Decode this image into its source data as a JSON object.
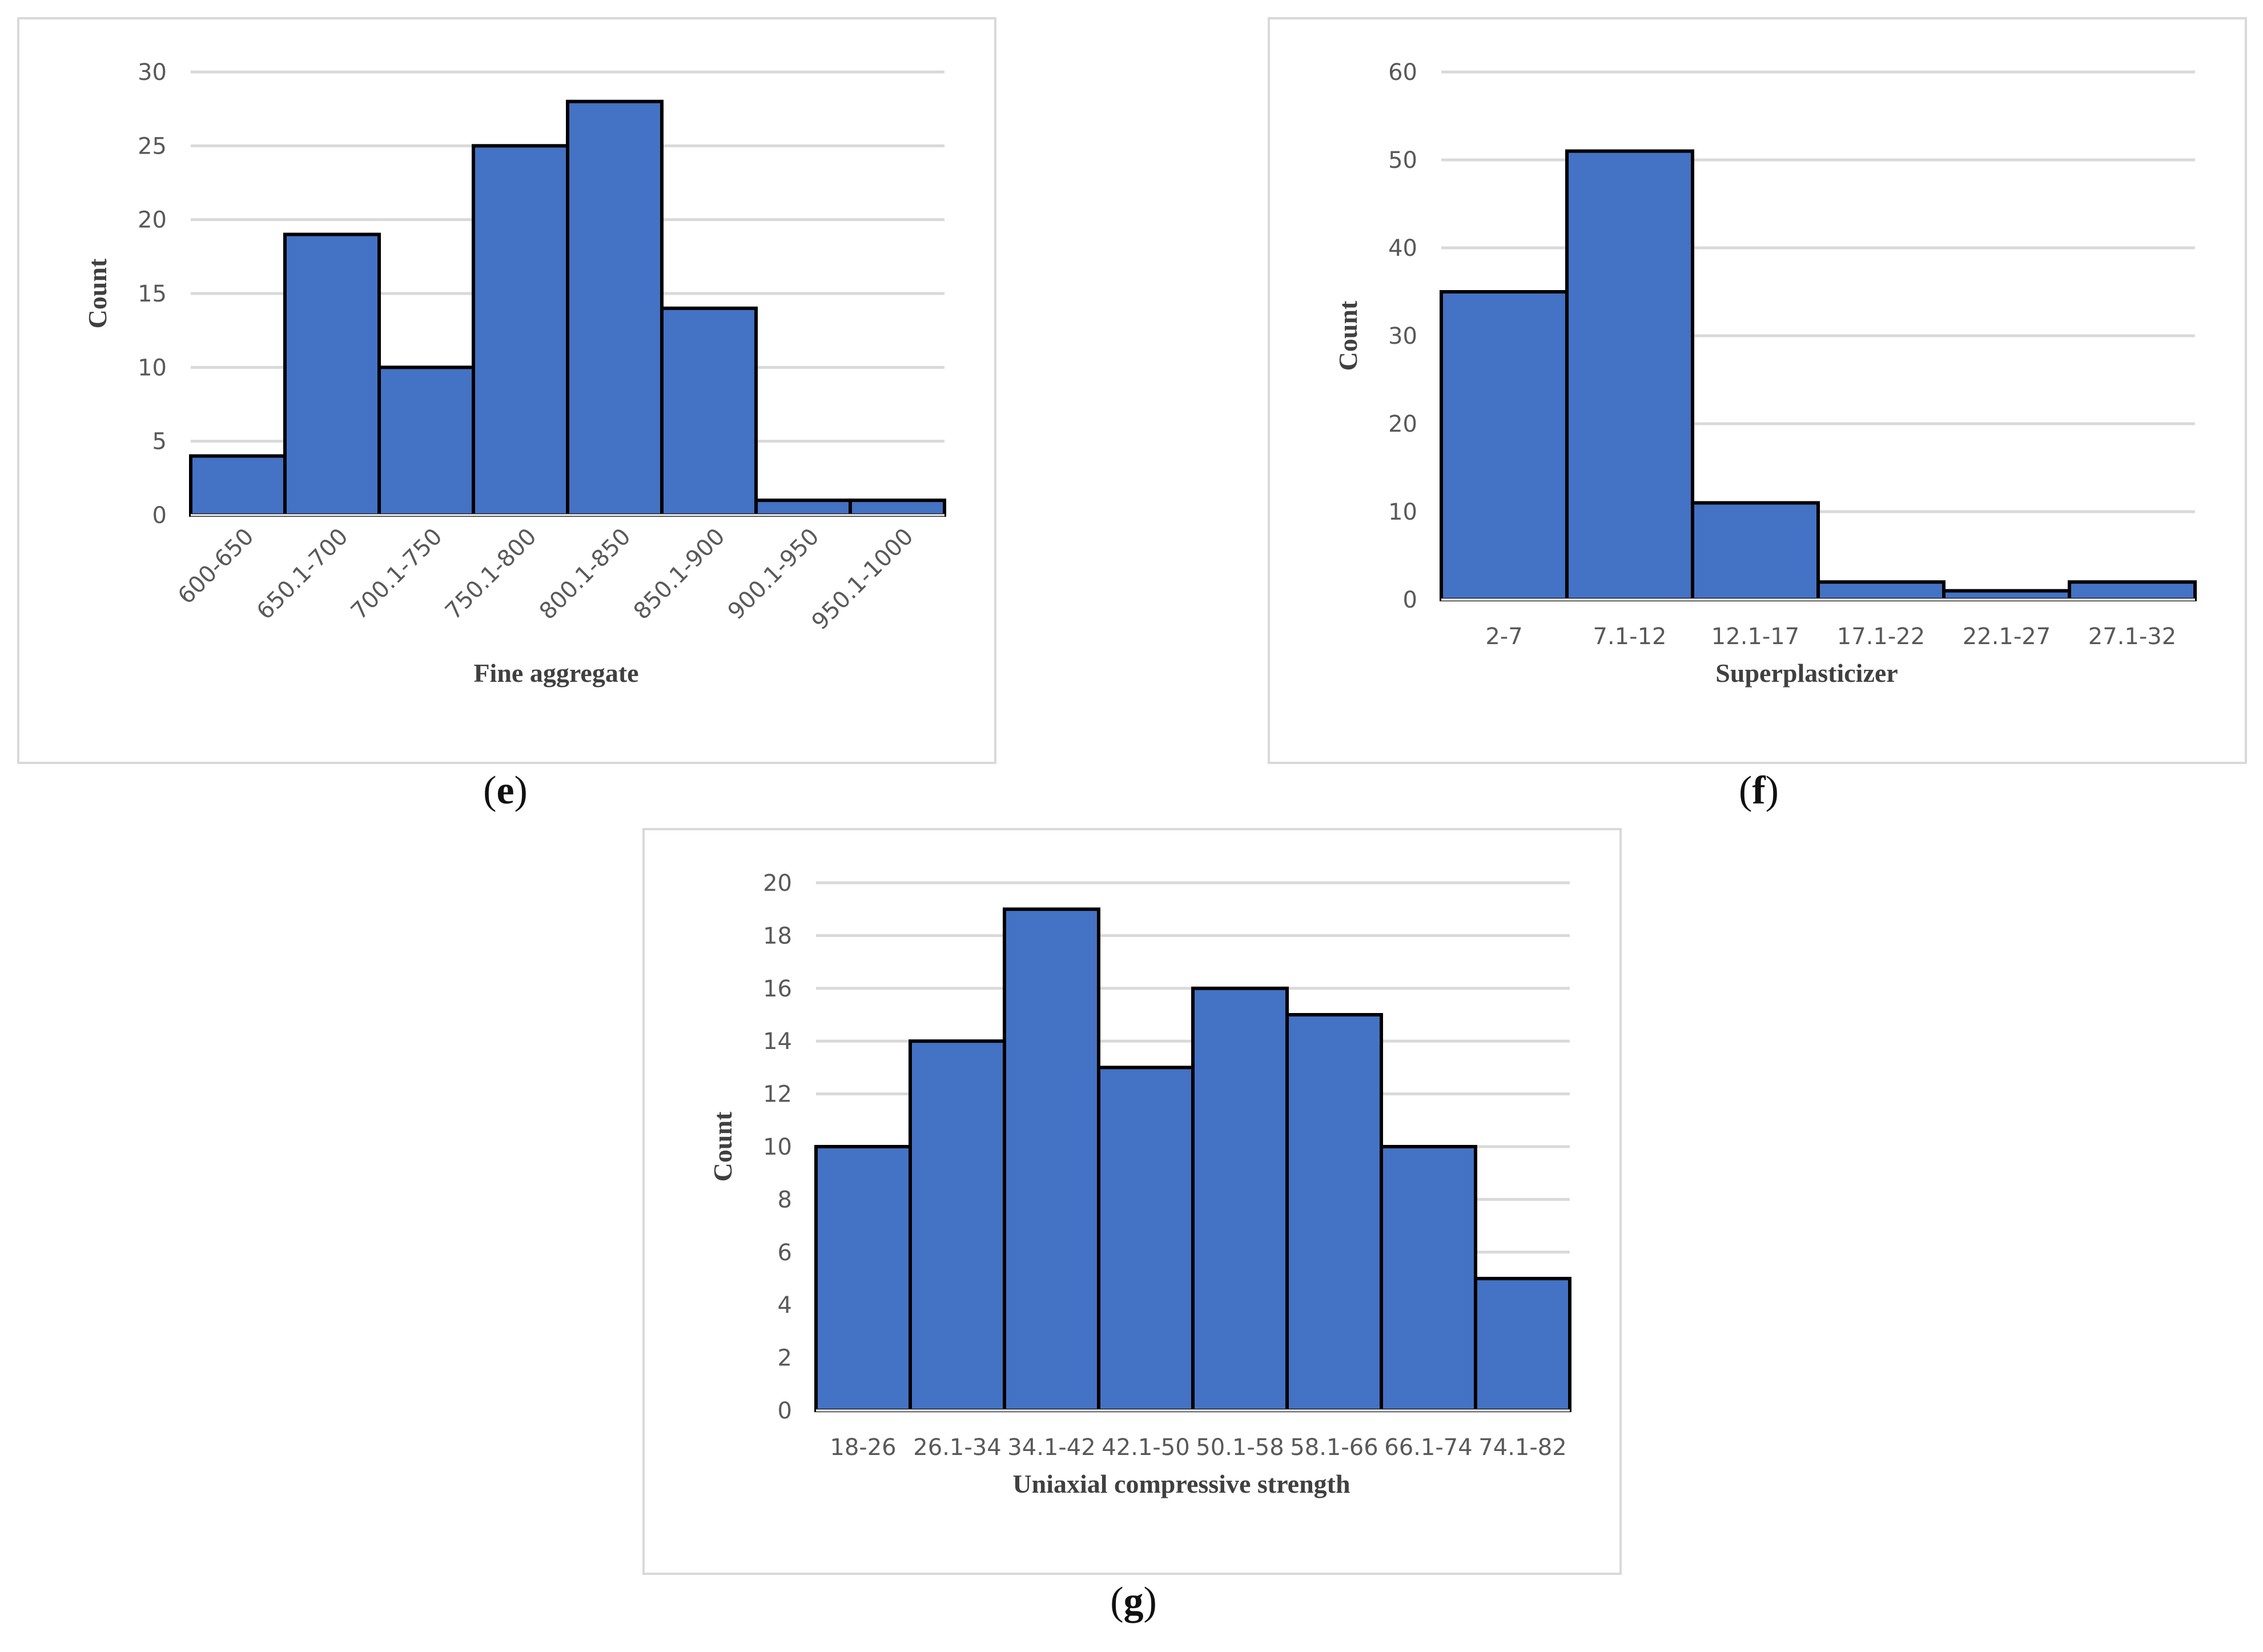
{
  "chart_data": [
    {
      "id": "e",
      "type": "bar",
      "panel_label": "e",
      "categories": [
        "600-650",
        "650.1-700",
        "700.1-750",
        "750.1-800",
        "800.1-850",
        "850.1-900",
        "900.1-950",
        "950.1-1000"
      ],
      "values": [
        4,
        19,
        10,
        25,
        28,
        14,
        1,
        1
      ],
      "title": "",
      "xlabel": "Fine aggregate",
      "ylabel": "Count",
      "ylim": [
        0,
        30
      ],
      "yticks": [
        0,
        5,
        10,
        15,
        20,
        25,
        30
      ],
      "bar_color": "#4472c4",
      "grid": true,
      "rotate_labels": true
    },
    {
      "id": "f",
      "type": "bar",
      "panel_label": "f",
      "categories": [
        "2-7",
        "7.1-12",
        "12.1-17",
        "17.1-22",
        "22.1-27",
        "27.1-32"
      ],
      "values": [
        35,
        51,
        11,
        2,
        1,
        2
      ],
      "title": "",
      "xlabel": "Superplasticizer",
      "ylabel": "Count",
      "ylim": [
        0,
        60
      ],
      "yticks": [
        0,
        10,
        20,
        30,
        40,
        50,
        60
      ],
      "bar_color": "#4472c4",
      "grid": true,
      "rotate_labels": false
    },
    {
      "id": "g",
      "type": "bar",
      "panel_label": "g",
      "categories": [
        "18-26",
        "26.1-34",
        "34.1-42",
        "42.1-50",
        "50.1-58",
        "58.1-66",
        "66.1-74",
        "74.1-82"
      ],
      "values": [
        10,
        14,
        19,
        13,
        16,
        15,
        10,
        5
      ],
      "title": "",
      "xlabel": "Uniaxial compressive strength",
      "ylabel": "Count",
      "ylim": [
        0,
        20
      ],
      "yticks": [
        0,
        2,
        4,
        6,
        8,
        10,
        12,
        14,
        16,
        18,
        20
      ],
      "bar_color": "#4472c4",
      "grid": true,
      "rotate_labels": false
    }
  ]
}
